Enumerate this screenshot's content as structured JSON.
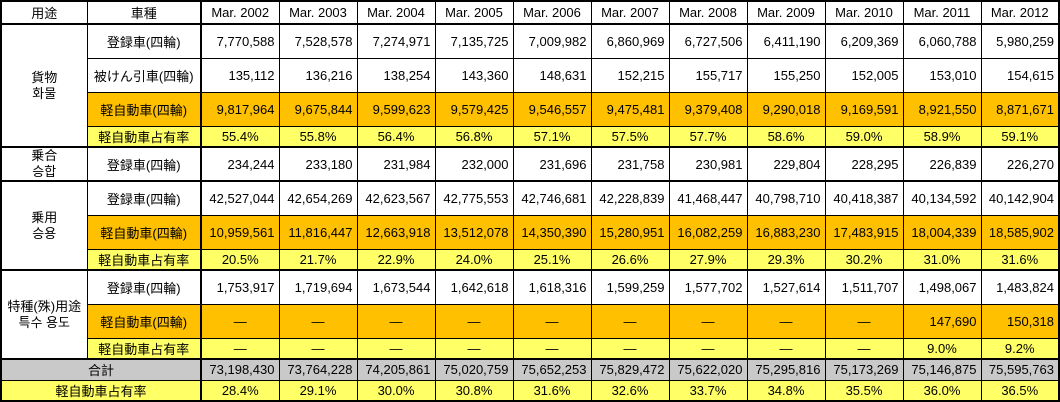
{
  "header": {
    "usage": "用途",
    "vehicle_type": "車種"
  },
  "columns": [
    "Mar. 2002",
    "Mar. 2003",
    "Mar. 2004",
    "Mar. 2005",
    "Mar. 2006",
    "Mar. 2007",
    "Mar. 2008",
    "Mar. 2009",
    "Mar. 2010",
    "Mar. 2011",
    "Mar. 2012"
  ],
  "dash": "―",
  "sections": [
    {
      "category": [
        "貨物",
        "화물"
      ],
      "rows": [
        {
          "label": "登録車(四輪)",
          "type": "count",
          "style": "plain",
          "values": [
            "7,770,588",
            "7,528,578",
            "7,274,971",
            "7,135,725",
            "7,009,982",
            "6,860,969",
            "6,727,506",
            "6,411,190",
            "6,209,369",
            "6,060,788",
            "5,980,259"
          ]
        },
        {
          "label": "被けん引車(四輪)",
          "type": "count",
          "style": "plain",
          "values": [
            "135,112",
            "136,216",
            "138,254",
            "143,360",
            "148,631",
            "152,215",
            "155,717",
            "155,250",
            "152,005",
            "153,010",
            "154,615"
          ]
        },
        {
          "label": "軽自動車(四輪)",
          "type": "count",
          "style": "orange",
          "values": [
            "9,817,964",
            "9,675,844",
            "9,599,623",
            "9,579,425",
            "9,546,557",
            "9,475,481",
            "9,379,408",
            "9,290,018",
            "9,169,591",
            "8,921,550",
            "8,871,671"
          ]
        },
        {
          "label": "軽自動車占有率",
          "type": "percent",
          "style": "yellow",
          "values": [
            "55.4%",
            "55.8%",
            "56.4%",
            "56.8%",
            "57.1%",
            "57.5%",
            "57.7%",
            "58.6%",
            "59.0%",
            "58.9%",
            "59.1%"
          ]
        }
      ]
    },
    {
      "category": [
        "乗合",
        "승합"
      ],
      "rows": [
        {
          "label": "登録車(四輪)",
          "type": "count",
          "style": "plain",
          "values": [
            "234,244",
            "233,180",
            "231,984",
            "232,000",
            "231,696",
            "231,758",
            "230,981",
            "229,804",
            "228,295",
            "226,839",
            "226,270"
          ]
        }
      ]
    },
    {
      "category": [
        "乗用",
        "승용"
      ],
      "rows": [
        {
          "label": "登録車(四輪)",
          "type": "count",
          "style": "plain",
          "values": [
            "42,527,044",
            "42,654,269",
            "42,623,567",
            "42,775,553",
            "42,746,681",
            "42,228,839",
            "41,468,447",
            "40,798,710",
            "40,418,387",
            "40,134,592",
            "40,142,904"
          ]
        },
        {
          "label": "軽自動車(四輪)",
          "type": "count",
          "style": "orange",
          "values": [
            "10,959,561",
            "11,816,447",
            "12,663,918",
            "13,512,078",
            "14,350,390",
            "15,280,951",
            "16,082,259",
            "16,883,230",
            "17,483,915",
            "18,004,339",
            "18,585,902"
          ]
        },
        {
          "label": "軽自動車占有率",
          "type": "percent",
          "style": "yellow",
          "values": [
            "20.5%",
            "21.7%",
            "22.9%",
            "24.0%",
            "25.1%",
            "26.6%",
            "27.9%",
            "29.3%",
            "30.2%",
            "31.0%",
            "31.6%"
          ]
        }
      ]
    },
    {
      "category": [
        "特種(殊)用途",
        "특수 용도"
      ],
      "rows": [
        {
          "label": "登録車(四輪)",
          "type": "count",
          "style": "plain",
          "values": [
            "1,753,917",
            "1,719,694",
            "1,673,544",
            "1,642,618",
            "1,618,316",
            "1,599,259",
            "1,577,702",
            "1,527,614",
            "1,511,707",
            "1,498,067",
            "1,483,824"
          ]
        },
        {
          "label": "軽自動車(四輪)",
          "type": "count",
          "style": "orange",
          "values": [
            "―",
            "―",
            "―",
            "―",
            "―",
            "―",
            "―",
            "―",
            "―",
            "147,690",
            "150,318"
          ]
        },
        {
          "label": "軽自動車占有率",
          "type": "percent",
          "style": "yellow",
          "values": [
            "―",
            "―",
            "―",
            "―",
            "―",
            "―",
            "―",
            "―",
            "―",
            "9.0%",
            "9.2%"
          ]
        }
      ]
    }
  ],
  "total_row": {
    "label": "合計",
    "style": "gray",
    "values": [
      "73,198,430",
      "73,764,228",
      "74,205,861",
      "75,020,759",
      "75,652,253",
      "75,829,472",
      "75,622,020",
      "75,295,816",
      "75,173,269",
      "75,146,875",
      "75,595,763"
    ]
  },
  "kei_share_row": {
    "label": "軽自動車占有率",
    "style": "yellow",
    "values": [
      "28.4%",
      "29.1%",
      "30.0%",
      "30.8%",
      "31.6%",
      "32.6%",
      "33.7%",
      "34.8%",
      "35.5%",
      "36.0%",
      "36.5%"
    ]
  },
  "colors": {
    "orange": "#FFC000",
    "yellow": "#FFFF66",
    "gray": "#C9C9C9",
    "border": "#000000"
  }
}
